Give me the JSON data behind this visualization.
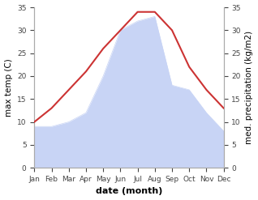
{
  "months": [
    "Jan",
    "Feb",
    "Mar",
    "Apr",
    "May",
    "Jun",
    "Jul",
    "Aug",
    "Sep",
    "Oct",
    "Nov",
    "Dec"
  ],
  "temp": [
    10,
    13,
    17,
    21,
    26,
    30,
    34,
    34,
    30,
    22,
    17,
    13
  ],
  "precip": [
    9,
    9,
    10,
    12,
    20,
    30,
    32,
    33,
    18,
    17,
    12,
    8
  ],
  "temp_color": "#cc3333",
  "precip_fill_color": "#c8d4f5",
  "precip_line_color": "#c8d4f5",
  "background_color": "#ffffff",
  "ylabel_left": "max temp (C)",
  "ylabel_right": "med. precipitation (kg/m2)",
  "xlabel": "date (month)",
  "ylim": [
    0,
    35
  ],
  "yticks": [
    0,
    5,
    10,
    15,
    20,
    25,
    30,
    35
  ],
  "spine_color": "#aaaaaa",
  "tick_color": "#444444",
  "tick_fontsize": 6.5,
  "ylabel_fontsize": 7.5,
  "xlabel_fontsize": 8
}
